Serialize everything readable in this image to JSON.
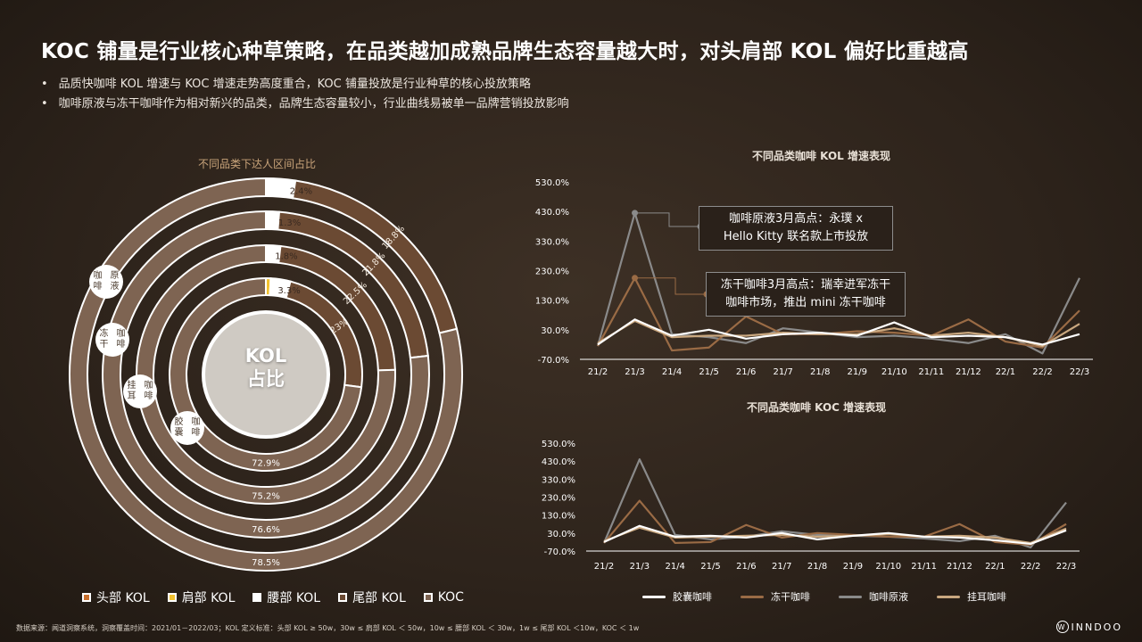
{
  "title": "KOC 铺量是行业核心种草策略，在品类越加成熟品牌生态容量越大时，对头肩部 KOL 偏好比重越高",
  "bullets": [
    "品质快咖啡 KOL 增速与 KOC 增速走势高度重合，KOC 铺量投放是行业种草的核心投放策略",
    "咖啡原液与冻干咖啡作为相对新兴的品类，品牌生态容量较小，行业曲线易被单一品牌营销投放影响"
  ],
  "donut": {
    "title": "不同品类下达人区间占比",
    "center_label_1": "KOL",
    "center_label_2": "占比",
    "categories": [
      "咖啡原液",
      "冻干咖啡",
      "挂耳咖啡",
      "胶囊咖啡"
    ],
    "cat_lines": [
      [
        "咖啡",
        "原液"
      ],
      [
        "冻干",
        "咖啡"
      ],
      [
        "挂耳",
        "咖啡"
      ],
      [
        "胶囊",
        "咖啡"
      ]
    ],
    "legend": [
      "头部 KOL",
      "肩部 KOL",
      "腰部 KOL",
      "尾部 KOL",
      "KOC"
    ],
    "colors": {
      "头部": "#c9702e",
      "肩部": "#f2c230",
      "腰部": "#ffffff",
      "尾部": "#6b4a33",
      "KOC": "#7e6452"
    }
  },
  "line_legend": [
    "胶囊咖啡",
    "冻干咖啡",
    "咖啡原液",
    "挂耳咖啡"
  ],
  "callouts": {
    "kol_1": [
      "咖啡原液3月高点：永璞 x",
      "Hello Kitty 联名款上市投放"
    ],
    "kol_2": [
      "冻干咖啡3月高点：瑞幸进军冻干",
      "咖啡市场，推出 mini 冻干咖啡"
    ]
  },
  "chart_data": [
    {
      "type": "pie",
      "title": "不同品类下达人区间占比",
      "categories": [
        "咖啡原液",
        "冻干咖啡",
        "挂耳咖啡",
        "胶囊咖啡"
      ],
      "series": [
        {
          "name": "头部 KOL",
          "values": [
            0,
            0,
            0,
            0
          ]
        },
        {
          "name": "肩部 KOL",
          "values": [
            0,
            0,
            0,
            0.8
          ]
        },
        {
          "name": "腰部 KOL",
          "values": [
            2.4,
            1.3,
            1.8,
            3.3
          ]
        },
        {
          "name": "尾部 KOL",
          "values": [
            18.8,
            21.8,
            22.5,
            23.0
          ]
        },
        {
          "name": "KOC",
          "values": [
            78.5,
            76.6,
            75.2,
            72.9
          ]
        }
      ],
      "labels": [
        [
          "2.4%",
          "18.8%",
          "78.5%"
        ],
        [
          "1.3%",
          "21.8%",
          "76.6%"
        ],
        [
          "1.8%",
          "22.5%",
          "75.2%"
        ],
        [
          "3.3%",
          "23%",
          "72.9%"
        ]
      ]
    },
    {
      "type": "line",
      "title": "不同品类咖啡 KOL 增速表现",
      "categories": [
        "21/2",
        "21/3",
        "21/4",
        "21/5",
        "21/6",
        "21/7",
        "21/8",
        "21/9",
        "21/10",
        "21/11",
        "21/12",
        "22/1",
        "22/2",
        "22/3"
      ],
      "ylim": [
        -70,
        530
      ],
      "yticks": [
        "530.0%",
        "430.0%",
        "330.0%",
        "230.0%",
        "130.0%",
        "30.0%",
        "-70.0%"
      ],
      "series": [
        {
          "name": "胶囊咖啡",
          "color": "#ffffff",
          "values": [
            -20,
            65,
            10,
            30,
            0,
            15,
            20,
            10,
            55,
            5,
            10,
            5,
            -20,
            15
          ]
        },
        {
          "name": "冻干咖啡",
          "color": "#9a6b45",
          "values": [
            -25,
            205,
            -40,
            -30,
            75,
            15,
            15,
            25,
            20,
            10,
            65,
            -10,
            -30,
            95
          ]
        },
        {
          "name": "咖啡原液",
          "color": "#8a8a8a",
          "values": [
            -25,
            425,
            15,
            5,
            -15,
            35,
            20,
            5,
            10,
            0,
            -15,
            15,
            -50,
            205
          ]
        },
        {
          "name": "挂耳咖啡",
          "color": "#c9a77f",
          "values": [
            -15,
            60,
            5,
            10,
            10,
            20,
            15,
            15,
            35,
            10,
            20,
            5,
            -25,
            50
          ]
        }
      ]
    },
    {
      "type": "line",
      "title": "不同品类咖啡 KOC 增速表现",
      "categories": [
        "21/2",
        "21/3",
        "21/4",
        "21/5",
        "21/6",
        "21/7",
        "21/8",
        "21/9",
        "21/10",
        "21/11",
        "21/12",
        "22/1",
        "22/2",
        "22/3"
      ],
      "ylim": [
        -70,
        530
      ],
      "yticks": [
        "530.0%",
        "430.0%",
        "330.0%",
        "230.0%",
        "130.0%",
        "30.0%",
        "-70.0%"
      ],
      "series": [
        {
          "name": "胶囊咖啡",
          "color": "#ffffff",
          "values": [
            -20,
            70,
            10,
            15,
            5,
            30,
            -5,
            15,
            30,
            10,
            5,
            -10,
            -30,
            45
          ]
        },
        {
          "name": "冻干咖啡",
          "color": "#9a6b45",
          "values": [
            -25,
            210,
            -25,
            -20,
            75,
            5,
            30,
            20,
            10,
            10,
            80,
            -20,
            -35,
            80
          ]
        },
        {
          "name": "咖啡原液",
          "color": "#8a8a8a",
          "values": [
            -25,
            440,
            20,
            -5,
            10,
            40,
            20,
            15,
            10,
            0,
            -15,
            15,
            -50,
            200
          ]
        },
        {
          "name": "挂耳咖啡",
          "color": "#c9a77f",
          "values": [
            -15,
            60,
            5,
            10,
            15,
            20,
            10,
            15,
            25,
            10,
            15,
            5,
            -25,
            55
          ]
        }
      ]
    }
  ],
  "footer": "数据来源：闻道洞察系统，洞察覆盖时间：2021/01－2022/03；KOL 定义标准：头部 KOL ≥ 50w，30w ≤ 肩部 KOL ＜ 50w，10w ≤ 腰部 KOL ＜ 30w，1w ≤ 尾部 KOL ＜10w，KOC ＜ 1w",
  "logo": "INNDOO",
  "logo_mark": "W"
}
